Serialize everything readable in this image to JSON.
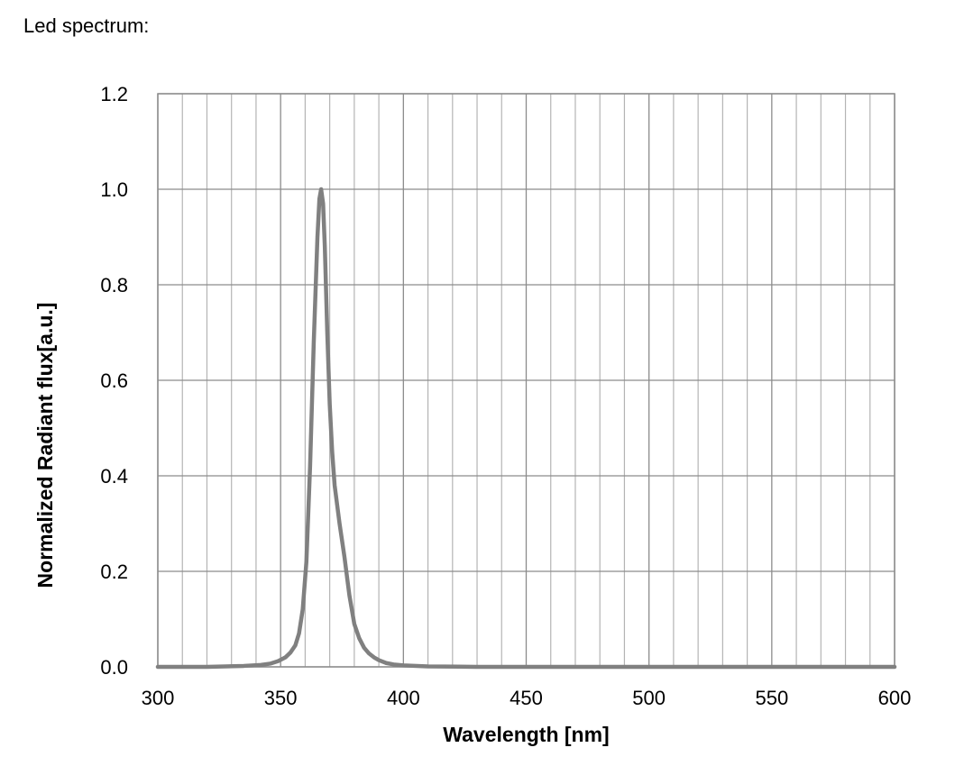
{
  "caption": "Led spectrum:",
  "chart_data": {
    "type": "line",
    "title": "",
    "xlabel": "Wavelength [nm]",
    "ylabel": "Normalized Radiant flux[a.u.]",
    "xlim": [
      300,
      600
    ],
    "ylim": [
      0,
      1.2
    ],
    "x_ticks": [
      300,
      350,
      400,
      450,
      500,
      550,
      600
    ],
    "x_tick_labels": [
      "300",
      "350",
      "400",
      "450",
      "500",
      "550",
      "600"
    ],
    "y_ticks": [
      0,
      0.2,
      0.4,
      0.6,
      0.8,
      1.0,
      1.2
    ],
    "y_tick_labels": [
      "0.0",
      "0.2",
      "0.4",
      "0.6",
      "0.8",
      "1.0",
      "1.2"
    ],
    "x_minor_step": 10,
    "grid": true,
    "legend": "none",
    "line_color": "#808080",
    "grid_color": "#b4b4b4",
    "series": [
      {
        "x": [
          300,
          320,
          335,
          342,
          346,
          349,
          352,
          354,
          356,
          357.5,
          359,
          360.5,
          362,
          363.5,
          365,
          365.8,
          366.5,
          367.3,
          368,
          369,
          370,
          371,
          372,
          374,
          376,
          378,
          380,
          382,
          384,
          386,
          388,
          390,
          393,
          396,
          400,
          410,
          430,
          460,
          500,
          550,
          600
        ],
        "y": [
          0.0,
          0.0,
          0.002,
          0.004,
          0.007,
          0.012,
          0.02,
          0.03,
          0.045,
          0.07,
          0.12,
          0.22,
          0.42,
          0.68,
          0.9,
          0.98,
          1.0,
          0.97,
          0.88,
          0.7,
          0.55,
          0.45,
          0.38,
          0.3,
          0.23,
          0.15,
          0.09,
          0.06,
          0.04,
          0.028,
          0.02,
          0.014,
          0.008,
          0.005,
          0.003,
          0.001,
          0.0,
          0.0,
          0.0,
          0.0,
          0.0
        ]
      }
    ]
  }
}
